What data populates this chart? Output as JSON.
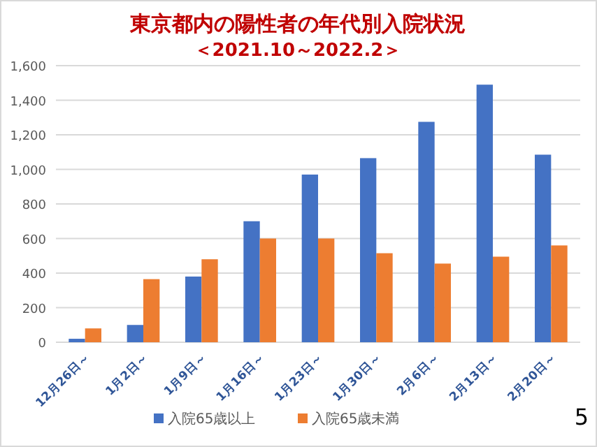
{
  "chart_data": {
    "type": "bar",
    "title": "東京都内の陽性者の年代別入院状況",
    "subtitle": "＜2021.10～2022.2＞",
    "categories": [
      "12月26日～",
      "1月2日～",
      "1月9日～",
      "1月16日～",
      "1月23日～",
      "1月30日～",
      "2月6日～",
      "2月13日～",
      "2月20日～"
    ],
    "series": [
      {
        "name": "入院65歳以上",
        "color": "#4472c4",
        "values": [
          20,
          100,
          380,
          700,
          970,
          1065,
          1275,
          1490,
          1085
        ]
      },
      {
        "name": "入院65歳未満",
        "color": "#ed7d31",
        "values": [
          80,
          365,
          480,
          600,
          600,
          515,
          455,
          495,
          560
        ]
      }
    ],
    "ylim": [
      0,
      1600
    ],
    "yticks": [
      {
        "value": 0,
        "label": "0"
      },
      {
        "value": 200,
        "label": "200"
      },
      {
        "value": 400,
        "label": "400"
      },
      {
        "value": 600,
        "label": "600"
      },
      {
        "value": 800,
        "label": "800"
      },
      {
        "value": 1000,
        "label": "1,000"
      },
      {
        "value": 1200,
        "label": "1,200"
      },
      {
        "value": 1400,
        "label": "1,400"
      },
      {
        "value": 1600,
        "label": "1,600"
      }
    ],
    "grid": "y",
    "legend": "bottom",
    "annotations": [
      "5"
    ]
  }
}
